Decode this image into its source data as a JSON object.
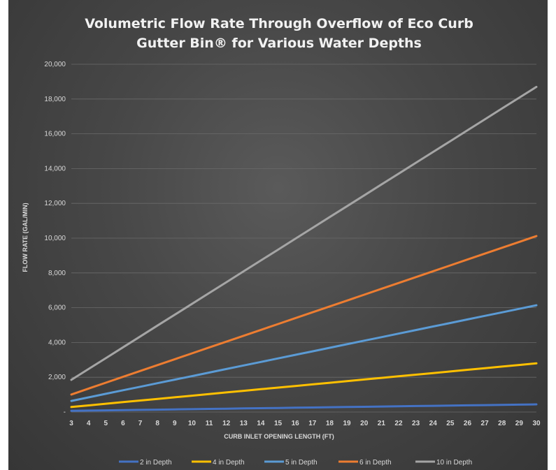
{
  "chart_data": {
    "type": "line",
    "title_lines": [
      "Volumetric Flow Rate Through Overflow of Eco Curb",
      "Gutter Bin® for Various Water Depths"
    ],
    "xlabel": "CURB INLET OPENING LENGTH (FT)",
    "ylabel": "FLOW RATE (GAL/MIN)",
    "x": [
      3,
      4,
      5,
      6,
      7,
      8,
      9,
      10,
      11,
      12,
      13,
      14,
      15,
      16,
      17,
      18,
      19,
      20,
      21,
      22,
      23,
      24,
      25,
      26,
      27,
      28,
      29,
      30
    ],
    "ylim": [
      0,
      20000
    ],
    "yticks": [
      0,
      2000,
      4000,
      6000,
      8000,
      10000,
      12000,
      14000,
      16000,
      18000,
      20000
    ],
    "ytick_labels": [
      "-",
      "2,000",
      "4,000",
      "6,000",
      "8,000",
      "10,000",
      "12,000",
      "14,000",
      "16,000",
      "18,000",
      "20,000"
    ],
    "grid": true,
    "legend_position": "bottom",
    "series": [
      {
        "name": "2 in Depth",
        "color": "#4472c4",
        "start": 70,
        "end": 440
      },
      {
        "name": "4 in Depth",
        "color": "#ffc000",
        "start": 290,
        "end": 2800
      },
      {
        "name": "5 in Depth",
        "color": "#5b9bd5",
        "start": 640,
        "end": 6140
      },
      {
        "name": "6 in Depth",
        "color": "#ed7d31",
        "start": 1010,
        "end": 10120
      },
      {
        "name": "10 in Depth",
        "color": "#a5a5a5",
        "start": 1850,
        "end": 18700
      }
    ]
  }
}
